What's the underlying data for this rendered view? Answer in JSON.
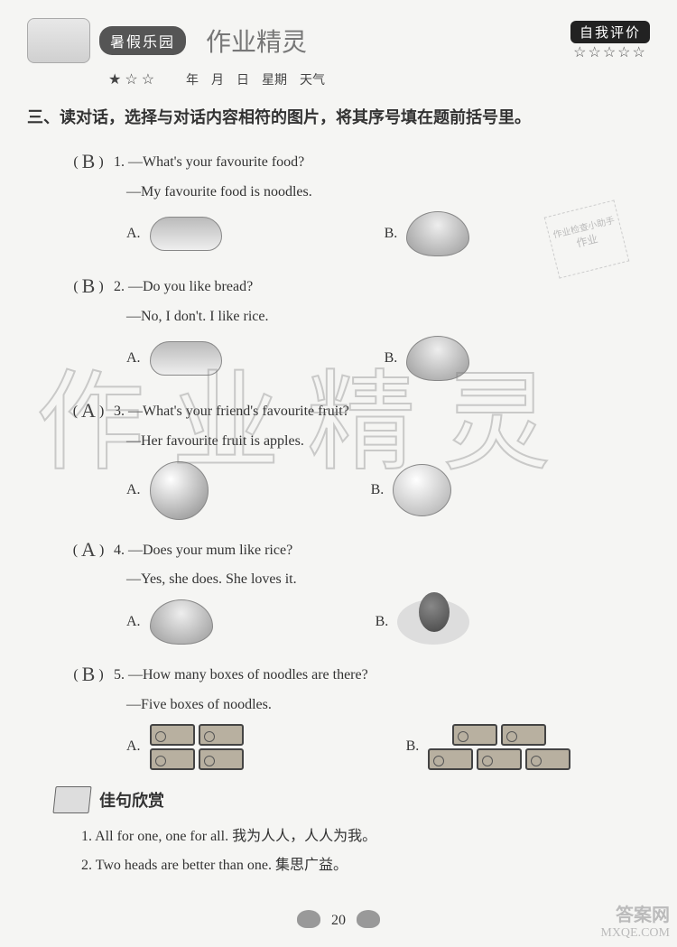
{
  "header": {
    "pill_title": "暑假乐园",
    "script_title": "作业精灵",
    "eval_label": "自我评价",
    "stars": "☆☆☆☆☆",
    "date_line": "年　月　日　星期　天气",
    "small_stars": "★ ☆ ☆"
  },
  "instruction": "三、读对话，选择与对话内容相符的图片，将其序号填在题前括号里。",
  "questions": [
    {
      "num": "1.",
      "answer": "B",
      "lines": [
        "—What's your favourite food?",
        "—My favourite food is noodles."
      ],
      "optA": "A.",
      "optB": "B.",
      "iconA": "bread",
      "iconB": "bowl"
    },
    {
      "num": "2.",
      "answer": "B",
      "lines": [
        "—Do you like bread?",
        "—No, I don't. I like rice."
      ],
      "optA": "A.",
      "optB": "B.",
      "iconA": "bread",
      "iconB": "bowl"
    },
    {
      "num": "3.",
      "answer": "A",
      "lines": [
        "—What's your friend's favourite fruit?",
        "—Her favourite fruit is apples."
      ],
      "optA": "A.",
      "optB": "B.",
      "iconA": "apple",
      "iconB": "orange"
    },
    {
      "num": "4.",
      "answer": "A",
      "lines": [
        "—Does your mum like rice?",
        "—Yes, she does. She loves it."
      ],
      "optA": "A.",
      "optB": "B.",
      "iconA": "bowl",
      "iconB": "plate-egg"
    },
    {
      "num": "5.",
      "answer": "B",
      "lines": [
        "—How many boxes of noodles are there?",
        "—Five boxes of noodles."
      ],
      "optA": "A.",
      "optB": "B.",
      "iconA": "boxes4",
      "iconB": "boxes5"
    }
  ],
  "section_title": "佳句欣赏",
  "quotes": [
    "1. All for one, one for all. 我为人人，人人为我。",
    "2. Two heads are better than one. 集思广益。"
  ],
  "page_number": "20",
  "watermark": "作业精灵",
  "corner_wm_1": "答案网",
  "corner_wm_2": "MXQE.COM",
  "stamp_text": "作业检查小助手"
}
